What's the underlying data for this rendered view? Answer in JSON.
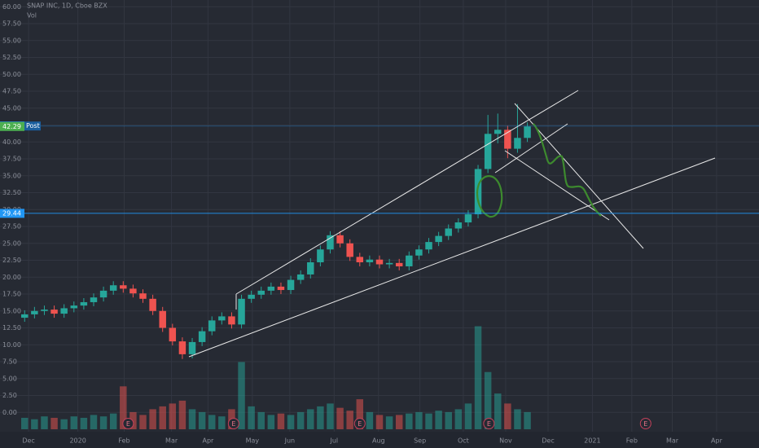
{
  "chart_data": {
    "type": "candlestick",
    "title": "SNAP INC, 1D, Cboe BZX",
    "subtitle": "Vol",
    "up_color": "#26a69a",
    "down_color": "#ef5350",
    "categories": [
      null,
      null,
      null,
      null,
      null,
      null,
      null,
      null,
      null,
      null,
      null,
      null,
      null,
      null,
      null,
      null,
      null,
      null,
      null,
      null,
      null,
      null,
      null,
      null,
      null,
      null,
      null,
      null,
      null,
      null,
      null,
      null,
      null,
      null,
      null,
      null,
      null,
      null,
      null,
      null,
      null,
      null,
      null,
      null,
      null,
      null,
      null,
      null,
      null,
      null,
      null,
      null
    ],
    "open": [
      14.0,
      14.5,
      15.0,
      15.2,
      14.6,
      15.4,
      15.8,
      16.3,
      17.0,
      18.0,
      18.8,
      18.3,
      17.6,
      16.8,
      15.0,
      12.5,
      10.5,
      8.6,
      10.4,
      12.0,
      13.6,
      14.2,
      13.0,
      16.8,
      17.4,
      18.0,
      18.6,
      18.1,
      19.6,
      20.4,
      22.2,
      24.1,
      26.2,
      25.0,
      23.0,
      22.2,
      22.6,
      21.9,
      22.1,
      21.6,
      23.2,
      24.1,
      25.2,
      26.1,
      27.2,
      28.1,
      29.3,
      36.0,
      41.2,
      41.8,
      39.0,
      40.6
    ],
    "high": [
      15.1,
      15.6,
      15.8,
      15.8,
      16.0,
      16.4,
      16.9,
      17.6,
      18.6,
      19.4,
      19.4,
      18.9,
      18.2,
      17.4,
      15.6,
      13.1,
      11.1,
      11.0,
      12.6,
      14.2,
      14.8,
      14.8,
      17.4,
      18.0,
      18.6,
      19.2,
      19.2,
      20.2,
      21.0,
      22.8,
      24.7,
      26.8,
      26.8,
      25.6,
      23.6,
      23.2,
      23.2,
      22.7,
      22.7,
      23.8,
      24.7,
      25.8,
      26.7,
      27.8,
      28.7,
      29.9,
      36.6,
      44.0,
      44.2,
      42.4,
      45.6,
      42.9
    ],
    "low": [
      13.4,
      13.9,
      14.4,
      14.0,
      14.0,
      14.8,
      15.2,
      15.7,
      16.4,
      17.4,
      17.7,
      17.0,
      16.2,
      14.4,
      11.9,
      9.9,
      7.9,
      8.0,
      9.8,
      11.4,
      13.0,
      12.4,
      12.4,
      16.2,
      16.8,
      17.4,
      17.5,
      17.5,
      19.0,
      19.8,
      21.6,
      23.5,
      24.4,
      22.4,
      21.6,
      21.6,
      21.3,
      21.3,
      21.0,
      21.0,
      22.6,
      23.5,
      24.6,
      25.5,
      26.6,
      27.5,
      28.7,
      35.4,
      39.8,
      37.6,
      38.4,
      40.0
    ],
    "close": [
      14.5,
      15.0,
      15.2,
      14.6,
      15.4,
      15.8,
      16.3,
      17.0,
      18.0,
      18.8,
      18.3,
      17.6,
      16.8,
      15.0,
      12.5,
      10.5,
      8.6,
      10.4,
      12.0,
      13.6,
      14.2,
      13.0,
      16.8,
      17.4,
      18.0,
      18.6,
      18.1,
      19.6,
      20.4,
      22.2,
      24.1,
      26.2,
      25.0,
      23.0,
      22.2,
      22.6,
      21.9,
      22.1,
      21.6,
      23.2,
      24.1,
      25.2,
      26.1,
      27.2,
      28.1,
      29.3,
      36.0,
      41.2,
      41.8,
      39.0,
      40.6,
      42.3
    ],
    "volume": [
      8,
      7,
      9,
      8,
      7,
      9,
      8,
      10,
      9,
      11,
      30,
      12,
      10,
      14,
      16,
      18,
      20,
      14,
      12,
      10,
      9,
      14,
      47,
      16,
      12,
      10,
      11,
      10,
      12,
      14,
      16,
      18,
      15,
      13,
      21,
      12,
      10,
      9,
      10,
      11,
      12,
      11,
      13,
      12,
      14,
      18,
      72,
      40,
      25,
      18,
      14,
      12
    ],
    "xlim": [
      -2.5,
      74.5
    ],
    "ylim": [
      -2.5,
      61
    ],
    "y2lim": [
      0,
      300
    ],
    "grid": true,
    "yticks": [
      {
        "value": 0,
        "label": "0.00"
      },
      {
        "value": 2.5,
        "label": "2.50"
      },
      {
        "value": 5,
        "label": "5.00"
      },
      {
        "value": 7.5,
        "label": "7.50"
      },
      {
        "value": 10,
        "label": "10.00"
      },
      {
        "value": 12.5,
        "label": "12.50"
      },
      {
        "value": 15,
        "label": "15.00"
      },
      {
        "value": 17.5,
        "label": "17.50"
      },
      {
        "value": 20,
        "label": "20.00"
      },
      {
        "value": 22.5,
        "label": "22.50"
      },
      {
        "value": 25,
        "label": "25.00"
      },
      {
        "value": 27.5,
        "label": "27.50"
      },
      {
        "value": 30,
        "label": "30.00"
      },
      {
        "value": 32.5,
        "label": "32.50"
      },
      {
        "value": 35,
        "label": "35.00"
      },
      {
        "value": 37.5,
        "label": "37.50"
      },
      {
        "value": 40,
        "label": "40.00"
      },
      {
        "value": 42.5,
        "label": "42.50"
      },
      {
        "value": 45,
        "label": "45.00"
      },
      {
        "value": 47.5,
        "label": "47.50"
      },
      {
        "value": 50,
        "label": "50.00"
      },
      {
        "value": 52.5,
        "label": "52.50"
      },
      {
        "value": 55,
        "label": "55.00"
      },
      {
        "value": 57.5,
        "label": "57.50"
      },
      {
        "value": 60,
        "label": "60.00"
      }
    ],
    "xticks": [
      {
        "value": 0.4,
        "label": "Dec"
      },
      {
        "value": 5.4,
        "label": "2020"
      },
      {
        "value": 10.1,
        "label": "Feb"
      },
      {
        "value": 14.9,
        "label": "Mar"
      },
      {
        "value": 18.6,
        "label": "Apr"
      },
      {
        "value": 23.1,
        "label": "May"
      },
      {
        "value": 26.9,
        "label": "Jun"
      },
      {
        "value": 31.4,
        "label": "Jul"
      },
      {
        "value": 35.9,
        "label": "Aug"
      },
      {
        "value": 40.1,
        "label": "Sep"
      },
      {
        "value": 44.5,
        "label": "Oct"
      },
      {
        "value": 48.8,
        "label": "Nov"
      },
      {
        "value": 53.1,
        "label": "Dec"
      },
      {
        "value": 57.6,
        "label": "2021"
      },
      {
        "value": 61.6,
        "label": "Feb"
      },
      {
        "value": 65.7,
        "label": "Mar"
      },
      {
        "value": 70.2,
        "label": "Apr"
      }
    ],
    "events": [
      {
        "index": 10.5,
        "label": "E"
      },
      {
        "index": 21.2,
        "label": "E"
      },
      {
        "index": 34,
        "label": "E"
      },
      {
        "index": 47.1,
        "label": "E"
      },
      {
        "index": 63,
        "label": "E"
      }
    ],
    "price_lines": [
      {
        "value": 42.36,
        "color": "#2196f3",
        "tag": "Post",
        "line": true
      },
      {
        "value": 42.29,
        "color": "#4caf50",
        "line": false
      },
      {
        "value": 29.44,
        "color": "#2196f3",
        "line": true
      }
    ]
  }
}
